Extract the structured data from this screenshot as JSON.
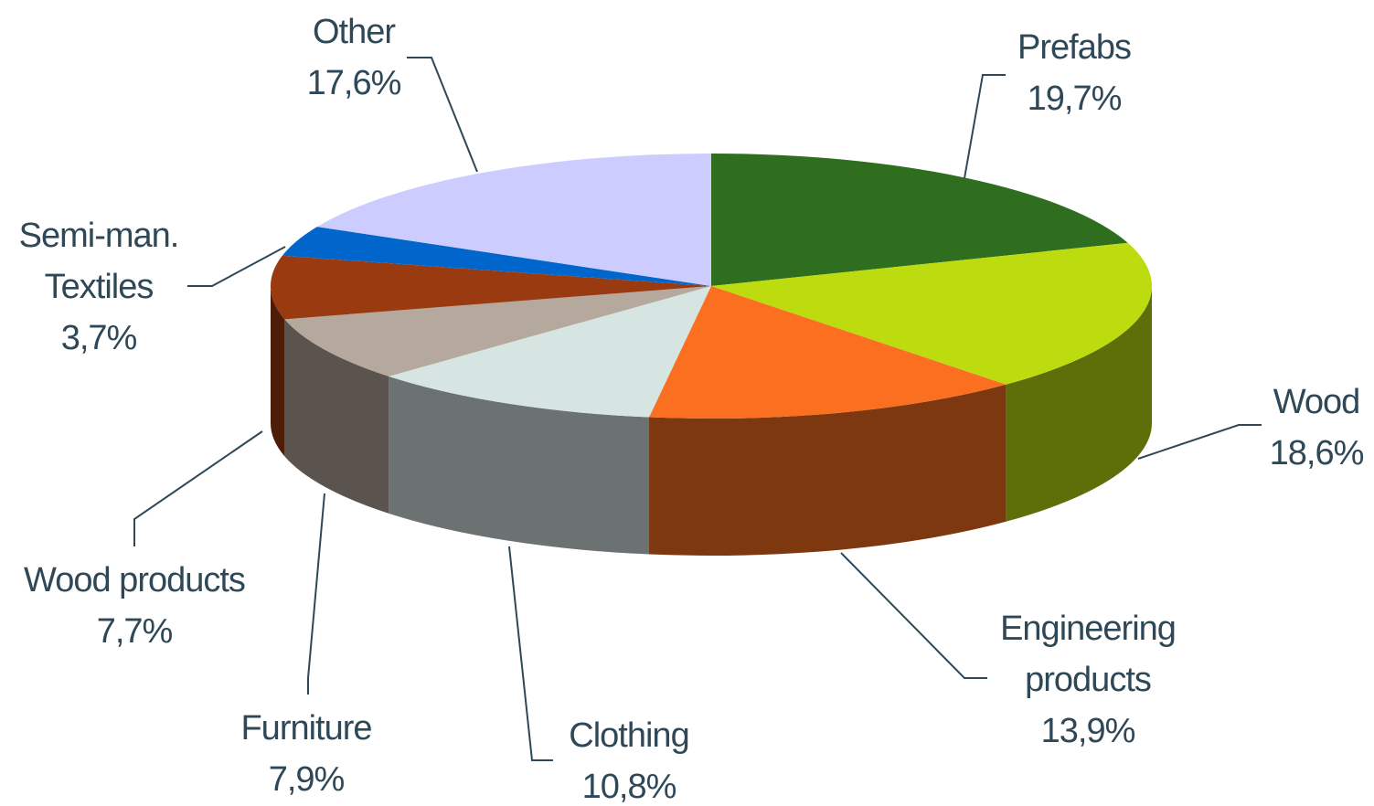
{
  "chart_data": {
    "type": "pie",
    "categories": [
      "Prefabs",
      "Wood",
      "Engineering products",
      "Clothing",
      "Furniture",
      "Wood products",
      "Semi-man. Textiles",
      "Other"
    ],
    "values": [
      19.7,
      18.6,
      13.9,
      10.8,
      7.9,
      7.7,
      3.7,
      17.6
    ],
    "value_labels": [
      "19,7%",
      "18,6%",
      "13,9%",
      "10,8%",
      "7,9%",
      "7,7%",
      "3,7%",
      "17,6%"
    ],
    "colors": [
      "#2e6e1e",
      "#bcdc10",
      "#fb7020",
      "#d6e4e2",
      "#b5a89c",
      "#993a10",
      "#0066cc",
      "#ccccff"
    ]
  }
}
